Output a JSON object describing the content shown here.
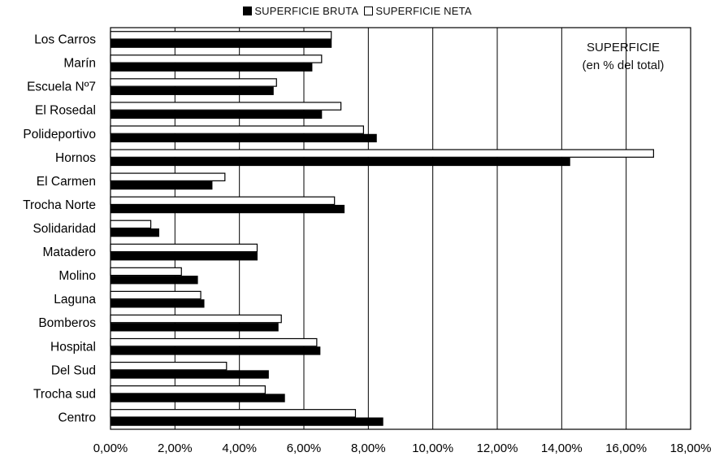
{
  "chart_data": {
    "type": "bar",
    "orientation": "horizontal",
    "categories": [
      "Los Carros",
      "Marín",
      "Escuela Nº7",
      "El Rosedal",
      "Polideportivo",
      "Hornos",
      "El Carmen",
      "Trocha Norte",
      "Solidaridad",
      "Matadero",
      "Molino",
      "Laguna",
      "Bomberos",
      "Hospital",
      "Del Sud",
      "Trocha sud",
      "Centro"
    ],
    "series": [
      {
        "name": "SUPERFICIE BRUTA",
        "color": "#000000",
        "values": [
          6.85,
          6.25,
          5.05,
          6.55,
          8.25,
          14.25,
          3.15,
          7.25,
          1.5,
          4.55,
          2.7,
          2.9,
          5.2,
          6.5,
          4.9,
          5.4,
          8.45
        ]
      },
      {
        "name": "SUPERFICIE NETA",
        "color": "#ffffff",
        "values": [
          6.85,
          6.55,
          5.15,
          7.15,
          7.85,
          16.85,
          3.55,
          6.95,
          1.25,
          4.55,
          2.2,
          2.8,
          5.3,
          6.4,
          3.6,
          4.8,
          7.6
        ]
      }
    ],
    "xlim": [
      0,
      18
    ],
    "xticks": [
      "0,00%",
      "2,00%",
      "4,00%",
      "6,00%",
      "8,00%",
      "10,00%",
      "12,00%",
      "14,00%",
      "16,00%",
      "18,00%"
    ],
    "grid": "vertical",
    "legend": {
      "position": "top-center",
      "items": [
        "SUPERFICIE BRUTA",
        "SUPERFICIE NETA"
      ]
    },
    "annotation": {
      "line1": "SUPERFICIE",
      "line2": "(en % del total)"
    }
  }
}
